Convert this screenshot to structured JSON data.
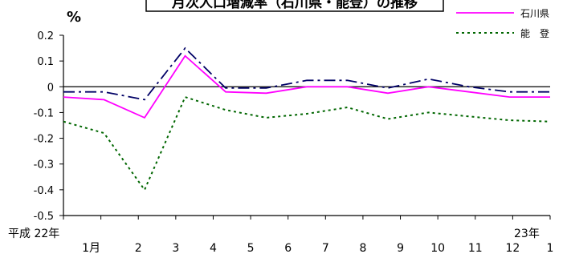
{
  "chart_data": {
    "type": "line",
    "title": "月次人口増減率（石川県・能登）の推移",
    "ylabel": "%",
    "y_ticks": [
      "0.2",
      "0.1",
      "0",
      "-0.1",
      "-0.2",
      "-0.3",
      "-0.4",
      "-0.5"
    ],
    "ylim": [
      -0.5,
      0.2
    ],
    "x_labels": [
      "1月",
      "2",
      "3",
      "4",
      "5",
      "6",
      "7",
      "8",
      "9",
      "10",
      "11",
      "12",
      "1"
    ],
    "x_era_start": "平成 22年",
    "x_era_end": "23年",
    "grid": false,
    "legend_position": "top-right",
    "series": [
      {
        "name": "石川県",
        "color": "#ff00ff",
        "style": "solid",
        "values": [
          -0.04,
          -0.05,
          -0.12,
          0.12,
          -0.02,
          -0.025,
          0.0,
          0.0,
          -0.025,
          0.0,
          -0.02,
          -0.04,
          -0.04
        ]
      },
      {
        "name": "",
        "color": "#000066",
        "style": "dashdot",
        "values": [
          -0.02,
          -0.02,
          -0.05,
          0.15,
          -0.005,
          -0.005,
          0.025,
          0.025,
          -0.005,
          0.03,
          0.0,
          -0.02,
          -0.02
        ]
      },
      {
        "name": "能　登",
        "color": "#006600",
        "style": "dotted",
        "values": [
          -0.135,
          -0.18,
          -0.4,
          -0.04,
          -0.09,
          -0.12,
          -0.105,
          -0.08,
          -0.125,
          -0.1,
          -0.115,
          -0.13,
          -0.135
        ]
      }
    ]
  }
}
